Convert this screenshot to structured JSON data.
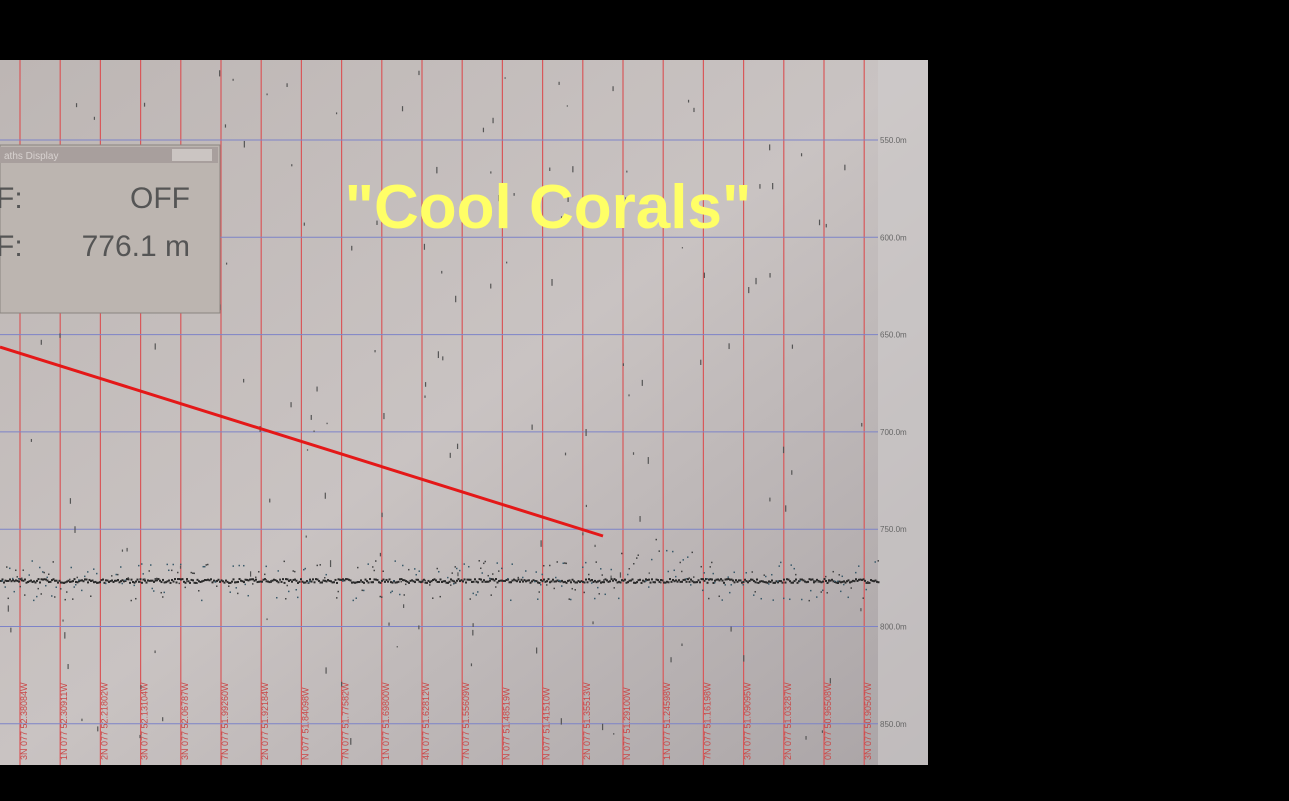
{
  "title": "\"Cool Corals\"",
  "window": {
    "title": "aths Display",
    "rows": [
      {
        "label": "F:",
        "value": "OFF"
      },
      {
        "label": "F:",
        "value": "776.1 m"
      }
    ]
  },
  "depth_labels": [
    "550.0m",
    "600.0m",
    "650.0m",
    "700.0m",
    "750.0m",
    "800.0m",
    "850.0m"
  ],
  "position_labels": [
    "3N 077 52.38084W",
    "1N 077 52.30911W",
    "2N 077 52.21802W",
    "3N 077 52.13104W",
    "3N 077 52.06787W",
    "7N 077 51.99260W",
    "2N 077 51.92184W",
    "N 077 51.84098W",
    "7N 077 51.77582W",
    "1N 077 51.69800W",
    "4N 077 51.62812W",
    "7N 077 51.55609W",
    "N 077 51.48519W",
    "N 077 51.41510W",
    "2N 077 51.35513W",
    "N 077 51.29100W",
    "1N 077 51.24598W",
    "7N 077 51.16198W",
    "3N 077 51.09095W",
    "2N 077 51.03287W",
    "0N 077 50.96508W",
    "3N 077 50.90507W"
  ]
}
